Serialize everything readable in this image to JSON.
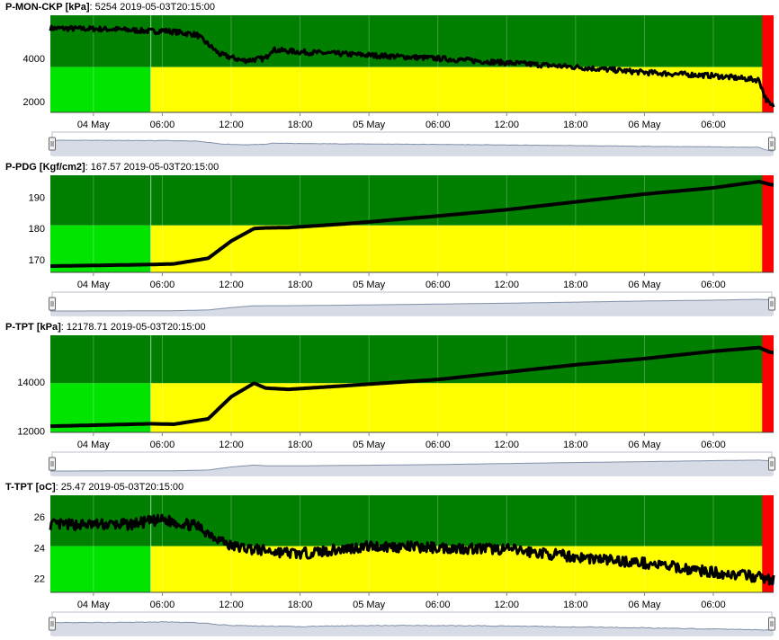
{
  "colors": {
    "dark_green": "#007f00",
    "light_green": "#00e400",
    "yellow": "#ffff00",
    "red": "#ff0000",
    "series": "#000000",
    "navigator_fill": "#d6dbe6",
    "navigator_line": "#8090a8"
  },
  "x_tick_labels": [
    "04 May",
    "06:00",
    "12:00",
    "18:00",
    "05 May",
    "06:00",
    "12:00",
    "18:00",
    "06 May",
    "06:00"
  ],
  "chart_data": [
    {
      "type": "line",
      "name": "P-MON-CKP",
      "unit": "[kPa]",
      "current_value": "5254",
      "timestamp": "2019-05-03T20:15:00",
      "y_ticks": [
        "2000",
        "4000"
      ],
      "ylim": [
        1500,
        6000
      ],
      "threshold": 3600,
      "noise": 120,
      "x": [
        "03 May 20:15",
        "04 May 02:00",
        "04 May 05:30",
        "04 May 06:00",
        "04 May 09:00",
        "04 May 11:00",
        "04 May 13:00",
        "04 May 15:00",
        "04 May 15:30",
        "04 May 18:00",
        "05 May 00:00",
        "05 May 06:00",
        "05 May 12:00",
        "05 May 18:00",
        "06 May 00:00",
        "06 May 06:00",
        "06 May 10:00",
        "06 May 10:30",
        "06 May 11:00"
      ],
      "values": [
        5400,
        5350,
        5250,
        5300,
        5100,
        4200,
        3900,
        4000,
        4400,
        4300,
        4150,
        4000,
        3800,
        3600,
        3350,
        3200,
        3000,
        2200,
        1800
      ]
    },
    {
      "type": "line",
      "name": "P-PDG",
      "unit": "[Kgf/cm2]",
      "current_value": "167.57",
      "timestamp": "2019-05-03T20:15:00",
      "y_ticks": [
        "170",
        "180",
        "190"
      ],
      "ylim": [
        166,
        197
      ],
      "threshold": 181,
      "noise": 0,
      "x": [
        "03 May 20:15",
        "04 May 05:00",
        "04 May 07:00",
        "04 May 10:00",
        "04 May 12:00",
        "04 May 14:00",
        "04 May 15:00",
        "04 May 17:00",
        "04 May 22:00",
        "05 May 06:00",
        "05 May 12:00",
        "05 May 18:00",
        "06 May 00:00",
        "06 May 06:00",
        "06 May 10:00",
        "06 May 11:00"
      ],
      "values": [
        168,
        168.5,
        168.7,
        170.5,
        176,
        180,
        180.2,
        180.3,
        181.5,
        184,
        186,
        188.5,
        191,
        193,
        195,
        194
      ]
    },
    {
      "type": "line",
      "name": "P-TPT",
      "unit": "[kPa]",
      "current_value": "12178.71",
      "timestamp": "2019-05-03T20:15:00",
      "y_ticks": [
        "12000",
        "14000"
      ],
      "ylim": [
        11950,
        15900
      ],
      "threshold": 13950,
      "noise": 0,
      "x": [
        "03 May 20:15",
        "04 May 05:00",
        "04 May 07:00",
        "04 May 10:00",
        "04 May 12:00",
        "04 May 14:00",
        "04 May 15:00",
        "04 May 17:00",
        "04 May 22:00",
        "05 May 06:00",
        "05 May 12:00",
        "05 May 18:00",
        "06 May 00:00",
        "06 May 06:00",
        "06 May 10:00",
        "06 May 11:00"
      ],
      "values": [
        12200,
        12300,
        12280,
        12500,
        13400,
        13950,
        13750,
        13700,
        13850,
        14100,
        14400,
        14700,
        14950,
        15250,
        15400,
        15200
      ]
    },
    {
      "type": "line",
      "name": "T-TPT",
      "unit": "[oC]",
      "current_value": "25.47",
      "timestamp": "2019-05-03T20:15:00",
      "y_ticks": [
        "22",
        "24",
        "26"
      ],
      "ylim": [
        21.1,
        27.4
      ],
      "threshold": 24.1,
      "noise": 0.35,
      "x": [
        "03 May 20:15",
        "04 May 03:00",
        "04 May 06:00",
        "04 May 09:00",
        "04 May 12:00",
        "04 May 15:00",
        "04 May 18:00",
        "05 May 00:00",
        "05 May 06:00",
        "05 May 12:00",
        "05 May 18:00",
        "06 May 00:00",
        "06 May 06:00",
        "06 May 10:00",
        "06 May 11:00"
      ],
      "values": [
        25.5,
        25.5,
        25.8,
        25.4,
        24.1,
        23.8,
        23.6,
        24.1,
        24.0,
        23.9,
        23.4,
        23.0,
        22.4,
        22.1,
        21.9
      ]
    }
  ]
}
